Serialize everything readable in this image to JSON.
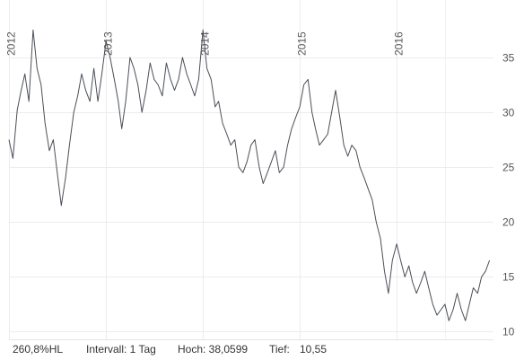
{
  "chart_data": {
    "type": "line",
    "title": "",
    "xlabel": "",
    "ylabel": "",
    "x_year_labels": [
      "2012",
      "2013",
      "2014",
      "2015",
      "2016"
    ],
    "y_ticks": [
      10,
      15,
      20,
      25,
      30,
      35
    ],
    "ylim": [
      9.3,
      38.6
    ],
    "xlim": [
      "2012-01-01",
      "2016-12-31"
    ],
    "grid": true,
    "series": [
      {
        "color": "#4a4f57",
        "x": [
          "2012-01-01",
          "2012-01-16",
          "2012-02-01",
          "2012-02-16",
          "2012-03-01",
          "2012-03-16",
          "2012-04-01",
          "2012-04-16",
          "2012-05-01",
          "2012-05-16",
          "2012-06-01",
          "2012-06-16",
          "2012-07-01",
          "2012-07-16",
          "2012-08-01",
          "2012-08-16",
          "2012-09-01",
          "2012-09-16",
          "2012-10-01",
          "2012-10-16",
          "2012-11-01",
          "2012-11-16",
          "2012-12-01",
          "2012-12-16",
          "2013-01-01",
          "2013-01-16",
          "2013-02-01",
          "2013-02-16",
          "2013-03-01",
          "2013-03-16",
          "2013-04-01",
          "2013-04-16",
          "2013-05-01",
          "2013-05-16",
          "2013-06-01",
          "2013-06-16",
          "2013-07-01",
          "2013-07-16",
          "2013-08-01",
          "2013-08-16",
          "2013-09-01",
          "2013-09-16",
          "2013-10-01",
          "2013-10-16",
          "2013-11-01",
          "2013-11-16",
          "2013-12-01",
          "2013-12-16",
          "2014-01-01",
          "2014-01-16",
          "2014-02-01",
          "2014-02-16",
          "2014-03-01",
          "2014-03-16",
          "2014-04-01",
          "2014-04-16",
          "2014-05-01",
          "2014-05-16",
          "2014-06-01",
          "2014-06-16",
          "2014-07-01",
          "2014-07-16",
          "2014-08-01",
          "2014-08-16",
          "2014-09-01",
          "2014-09-16",
          "2014-10-01",
          "2014-10-16",
          "2014-11-01",
          "2014-11-16",
          "2014-12-01",
          "2014-12-16",
          "2015-01-01",
          "2015-01-16",
          "2015-02-01",
          "2015-02-16",
          "2015-03-01",
          "2015-03-16",
          "2015-04-01",
          "2015-04-16",
          "2015-05-01",
          "2015-05-16",
          "2015-06-01",
          "2015-06-16",
          "2015-07-01",
          "2015-07-16",
          "2015-08-01",
          "2015-08-16",
          "2015-09-01",
          "2015-09-16",
          "2015-10-01",
          "2015-10-16",
          "2015-11-01",
          "2015-11-16",
          "2015-12-01",
          "2015-12-16",
          "2016-01-01",
          "2016-01-16",
          "2016-02-01",
          "2016-02-16",
          "2016-03-01",
          "2016-03-16",
          "2016-04-01",
          "2016-04-16",
          "2016-05-01",
          "2016-05-16",
          "2016-06-01",
          "2016-06-16",
          "2016-07-01",
          "2016-07-16",
          "2016-08-01",
          "2016-08-16",
          "2016-09-01",
          "2016-09-16",
          "2016-10-01",
          "2016-10-16",
          "2016-11-01",
          "2016-11-16",
          "2016-12-01",
          "2016-12-16"
        ],
        "values": [
          27.5,
          25.8,
          30.2,
          32.0,
          33.5,
          31.0,
          37.5,
          34.0,
          32.5,
          29.0,
          26.5,
          27.5,
          24.5,
          21.5,
          24.0,
          27.0,
          30.0,
          31.5,
          33.5,
          32.0,
          31.0,
          34.0,
          31.0,
          33.5,
          36.5,
          35.0,
          33.0,
          31.0,
          28.5,
          31.0,
          35.0,
          34.0,
          32.5,
          30.0,
          32.0,
          34.5,
          33.0,
          32.5,
          31.5,
          34.5,
          33.0,
          32.0,
          33.0,
          35.0,
          33.5,
          32.5,
          31.5,
          33.0,
          37.5,
          34.0,
          33.0,
          30.5,
          31.0,
          29.0,
          28.0,
          27.0,
          27.5,
          25.0,
          24.5,
          25.5,
          27.0,
          27.5,
          25.0,
          23.5,
          24.5,
          25.5,
          26.5,
          24.5,
          25.0,
          27.0,
          28.5,
          29.5,
          30.5,
          32.5,
          33.0,
          30.0,
          28.5,
          27.0,
          27.5,
          28.0,
          30.0,
          32.0,
          29.5,
          27.0,
          26.0,
          27.0,
          26.5,
          25.0,
          24.0,
          23.0,
          22.0,
          20.0,
          18.5,
          15.5,
          13.5,
          16.5,
          18.0,
          16.5,
          15.0,
          16.0,
          14.5,
          13.5,
          14.5,
          15.5,
          14.0,
          12.5,
          11.5,
          12.0,
          12.5,
          11.0,
          12.0,
          13.5,
          12.0,
          11.0,
          12.5,
          14.0,
          13.5,
          15.0,
          15.5,
          16.5
        ]
      }
    ]
  },
  "footer": {
    "hl": "260,8%HL",
    "interval": "Intervall: 1 Tag",
    "high": "Hoch: 38,0599",
    "low_label": "Tief:",
    "low_value": "10,55"
  }
}
